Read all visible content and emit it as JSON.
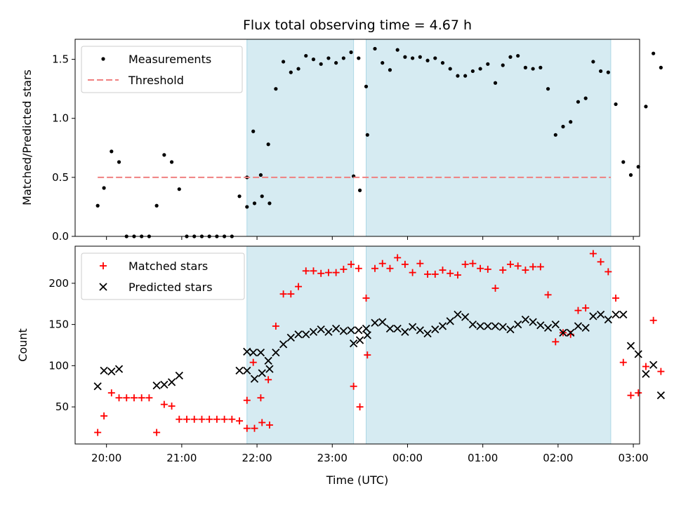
{
  "chart_data": [
    {
      "type": "scatter",
      "title": "Flux total observing time = 4.67 h",
      "xlabel": "",
      "ylabel": "Matched/Predicted stars",
      "xlim": [
        "19:35",
        "03:05"
      ],
      "ylim": [
        0,
        1.67
      ],
      "yticks": [
        "0.0",
        "0.5",
        "1.0",
        "1.5"
      ],
      "legend_placement": "top-left",
      "shaded_intervals": [
        [
          "21:52",
          "23:17"
        ],
        [
          "23:27",
          "02:42"
        ]
      ],
      "series": [
        {
          "name": "Measurements",
          "color": "#000000",
          "marker": "dot",
          "points": [
            [
              "19:53",
              0.26
            ],
            [
              "19:58",
              0.41
            ],
            [
              "20:04",
              0.72
            ],
            [
              "20:10",
              0.63
            ],
            [
              "20:16",
              0.0
            ],
            [
              "20:22",
              0.0
            ],
            [
              "20:28",
              0.0
            ],
            [
              "20:34",
              0.0
            ],
            [
              "20:40",
              0.26
            ],
            [
              "20:46",
              0.69
            ],
            [
              "20:52",
              0.63
            ],
            [
              "20:58",
              0.4
            ],
            [
              "21:04",
              0.0
            ],
            [
              "21:10",
              0.0
            ],
            [
              "21:16",
              0.0
            ],
            [
              "21:22",
              0.0
            ],
            [
              "21:28",
              0.0
            ],
            [
              "21:34",
              0.0
            ],
            [
              "21:40",
              0.0
            ],
            [
              "21:46",
              0.34
            ],
            [
              "21:52",
              0.25
            ],
            [
              "21:58",
              0.28
            ],
            [
              "22:04",
              0.34
            ],
            [
              "22:10",
              0.28
            ],
            [
              "21:52",
              0.5
            ],
            [
              "21:57",
              0.89
            ],
            [
              "22:03",
              0.52
            ],
            [
              "22:09",
              0.78
            ],
            [
              "22:15",
              1.25
            ],
            [
              "22:21",
              1.48
            ],
            [
              "22:27",
              1.39
            ],
            [
              "22:33",
              1.42
            ],
            [
              "22:39",
              1.53
            ],
            [
              "22:45",
              1.5
            ],
            [
              "22:51",
              1.46
            ],
            [
              "22:57",
              1.51
            ],
            [
              "23:03",
              1.47
            ],
            [
              "23:09",
              1.51
            ],
            [
              "23:15",
              1.56
            ],
            [
              "23:21",
              1.51
            ],
            [
              "23:27",
              1.27
            ],
            [
              "23:17",
              0.51
            ],
            [
              "23:22",
              0.39
            ],
            [
              "23:28",
              0.86
            ],
            [
              "23:34",
              1.59
            ],
            [
              "23:40",
              1.47
            ],
            [
              "23:46",
              1.41
            ],
            [
              "23:52",
              1.58
            ],
            [
              "23:58",
              1.52
            ],
            [
              "00:04",
              1.51
            ],
            [
              "00:10",
              1.52
            ],
            [
              "00:16",
              1.49
            ],
            [
              "00:22",
              1.51
            ],
            [
              "00:28",
              1.47
            ],
            [
              "00:34",
              1.42
            ],
            [
              "00:40",
              1.36
            ],
            [
              "00:46",
              1.36
            ],
            [
              "00:52",
              1.4
            ],
            [
              "00:58",
              1.42
            ],
            [
              "01:04",
              1.46
            ],
            [
              "01:10",
              1.3
            ],
            [
              "01:16",
              1.45
            ],
            [
              "01:22",
              1.52
            ],
            [
              "01:28",
              1.53
            ],
            [
              "01:34",
              1.43
            ],
            [
              "01:40",
              1.42
            ],
            [
              "01:46",
              1.43
            ],
            [
              "01:52",
              1.25
            ],
            [
              "01:58",
              0.86
            ],
            [
              "02:04",
              0.93
            ],
            [
              "02:10",
              0.97
            ],
            [
              "02:16",
              1.14
            ],
            [
              "02:22",
              1.17
            ],
            [
              "02:28",
              1.48
            ],
            [
              "02:34",
              1.4
            ],
            [
              "02:40",
              1.39
            ],
            [
              "02:46",
              1.12
            ],
            [
              "02:52",
              0.63
            ],
            [
              "02:58",
              0.52
            ],
            [
              "03:04",
              0.59
            ],
            [
              "03:10",
              1.1
            ],
            [
              "03:16",
              1.55
            ],
            [
              "03:22",
              1.43
            ]
          ]
        },
        {
          "name": "Threshold",
          "color": "#f08080",
          "marker": "dashed-line",
          "points": [
            [
              "19:53",
              0.5
            ],
            [
              "02:42",
              0.5
            ]
          ]
        }
      ]
    },
    {
      "type": "scatter",
      "title": "",
      "xlabel": "Time (UTC)",
      "ylabel": "Count",
      "xlim": [
        "19:35",
        "03:05"
      ],
      "ylim": [
        5,
        245
      ],
      "yticks": [
        "50",
        "100",
        "150",
        "200"
      ],
      "xticks": [
        "20:00",
        "21:00",
        "22:00",
        "23:00",
        "00:00",
        "01:00",
        "02:00",
        "03:00"
      ],
      "legend_placement": "top-left",
      "shaded_intervals": [
        [
          "21:52",
          "23:17"
        ],
        [
          "23:27",
          "02:42"
        ]
      ],
      "series": [
        {
          "name": "Matched stars",
          "color": "#ff0000",
          "marker": "plus",
          "points": [
            [
              "19:53",
              19
            ],
            [
              "19:58",
              39
            ],
            [
              "20:04",
              67
            ],
            [
              "20:10",
              61
            ],
            [
              "20:16",
              61
            ],
            [
              "20:22",
              61
            ],
            [
              "20:28",
              61
            ],
            [
              "20:34",
              61
            ],
            [
              "20:40",
              19
            ],
            [
              "20:46",
              53
            ],
            [
              "20:52",
              51
            ],
            [
              "20:58",
              35
            ],
            [
              "21:04",
              35
            ],
            [
              "21:10",
              35
            ],
            [
              "21:16",
              35
            ],
            [
              "21:22",
              35
            ],
            [
              "21:28",
              35
            ],
            [
              "21:34",
              35
            ],
            [
              "21:40",
              35
            ],
            [
              "21:46",
              33
            ],
            [
              "21:52",
              24
            ],
            [
              "21:58",
              24
            ],
            [
              "22:04",
              31
            ],
            [
              "22:10",
              28
            ],
            [
              "21:52",
              58
            ],
            [
              "21:57",
              104
            ],
            [
              "22:03",
              61
            ],
            [
              "22:09",
              83
            ],
            [
              "22:15",
              148
            ],
            [
              "22:21",
              187
            ],
            [
              "22:27",
              187
            ],
            [
              "22:33",
              196
            ],
            [
              "22:39",
              215
            ],
            [
              "22:45",
              215
            ],
            [
              "22:51",
              212
            ],
            [
              "22:57",
              213
            ],
            [
              "23:03",
              213
            ],
            [
              "23:09",
              217
            ],
            [
              "23:15",
              223
            ],
            [
              "23:21",
              218
            ],
            [
              "23:27",
              182
            ],
            [
              "23:17",
              75
            ],
            [
              "23:22",
              50
            ],
            [
              "23:28",
              113
            ],
            [
              "23:34",
              218
            ],
            [
              "23:40",
              224
            ],
            [
              "23:46",
              218
            ],
            [
              "23:52",
              231
            ],
            [
              "23:58",
              223
            ],
            [
              "00:04",
              213
            ],
            [
              "00:10",
              224
            ],
            [
              "00:16",
              211
            ],
            [
              "00:22",
              211
            ],
            [
              "00:28",
              216
            ],
            [
              "00:34",
              212
            ],
            [
              "00:40",
              210
            ],
            [
              "00:46",
              223
            ],
            [
              "00:52",
              224
            ],
            [
              "00:58",
              218
            ],
            [
              "01:04",
              217
            ],
            [
              "01:10",
              194
            ],
            [
              "01:16",
              216
            ],
            [
              "01:22",
              223
            ],
            [
              "01:28",
              221
            ],
            [
              "01:34",
              216
            ],
            [
              "01:40",
              220
            ],
            [
              "01:46",
              220
            ],
            [
              "01:52",
              186
            ],
            [
              "01:58",
              129
            ],
            [
              "02:04",
              140
            ],
            [
              "02:10",
              138
            ],
            [
              "02:16",
              167
            ],
            [
              "02:22",
              170
            ],
            [
              "02:28",
              236
            ],
            [
              "02:34",
              226
            ],
            [
              "02:40",
              214
            ],
            [
              "02:46",
              182
            ],
            [
              "02:52",
              104
            ],
            [
              "02:58",
              64
            ],
            [
              "03:04",
              67
            ],
            [
              "03:10",
              99
            ],
            [
              "03:16",
              155
            ],
            [
              "03:22",
              93
            ]
          ]
        },
        {
          "name": "Predicted stars",
          "color": "#000000",
          "marker": "x",
          "points": [
            [
              "19:53",
              75
            ],
            [
              "19:58",
              94
            ],
            [
              "20:04",
              93
            ],
            [
              "20:10",
              96
            ],
            [
              "20:40",
              76
            ],
            [
              "20:46",
              77
            ],
            [
              "20:52",
              80
            ],
            [
              "20:58",
              88
            ],
            [
              "21:46",
              94
            ],
            [
              "21:52",
              94
            ],
            [
              "21:58",
              84
            ],
            [
              "22:04",
              91
            ],
            [
              "22:10",
              96
            ],
            [
              "21:52",
              117
            ],
            [
              "21:57",
              116
            ],
            [
              "22:03",
              116
            ],
            [
              "22:09",
              106
            ],
            [
              "22:15",
              116
            ],
            [
              "22:21",
              126
            ],
            [
              "22:27",
              134
            ],
            [
              "22:33",
              138
            ],
            [
              "22:39",
              138
            ],
            [
              "22:45",
              141
            ],
            [
              "22:51",
              144
            ],
            [
              "22:57",
              141
            ],
            [
              "23:03",
              145
            ],
            [
              "23:09",
              142
            ],
            [
              "23:15",
              143
            ],
            [
              "23:21",
              143
            ],
            [
              "23:27",
              145
            ],
            [
              "23:17",
              127
            ],
            [
              "23:22",
              131
            ],
            [
              "23:28",
              137
            ],
            [
              "23:34",
              152
            ],
            [
              "23:40",
              153
            ],
            [
              "23:46",
              145
            ],
            [
              "23:52",
              145
            ],
            [
              "23:58",
              141
            ],
            [
              "00:04",
              147
            ],
            [
              "00:10",
              143
            ],
            [
              "00:16",
              139
            ],
            [
              "00:22",
              144
            ],
            [
              "00:28",
              148
            ],
            [
              "00:34",
              154
            ],
            [
              "00:40",
              162
            ],
            [
              "00:46",
              159
            ],
            [
              "00:52",
              150
            ],
            [
              "00:58",
              148
            ],
            [
              "01:04",
              148
            ],
            [
              "01:10",
              148
            ],
            [
              "01:16",
              147
            ],
            [
              "01:22",
              144
            ],
            [
              "01:28",
              150
            ],
            [
              "01:34",
              156
            ],
            [
              "01:40",
              153
            ],
            [
              "01:46",
              149
            ],
            [
              "01:52",
              146
            ],
            [
              "01:58",
              150
            ],
            [
              "02:04",
              140
            ],
            [
              "02:10",
              140
            ],
            [
              "02:16",
              148
            ],
            [
              "02:22",
              146
            ],
            [
              "02:28",
              160
            ],
            [
              "02:34",
              162
            ],
            [
              "02:40",
              156
            ],
            [
              "02:46",
              162
            ],
            [
              "02:52",
              162
            ],
            [
              "02:58",
              124
            ],
            [
              "03:04",
              114
            ],
            [
              "03:10",
              90
            ],
            [
              "03:16",
              101
            ],
            [
              "03:22",
              64
            ]
          ]
        }
      ]
    }
  ]
}
